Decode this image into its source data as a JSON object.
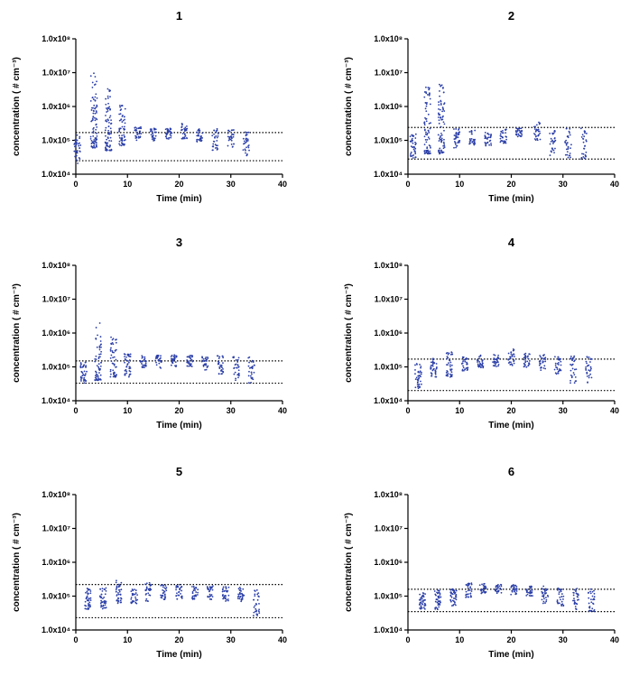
{
  "chart_data": [
    {
      "type": "scatter",
      "title": "1",
      "xlabel": "Time (min)",
      "ylabel": "concentration ( # cm⁻³)",
      "xlim": [
        0,
        40
      ],
      "ylim": [
        10000,
        100000000
      ],
      "yscale": "log",
      "xticks": [
        "0",
        "10",
        "20",
        "30",
        "40"
      ],
      "yticks": [
        "1.0x10⁴",
        "1.0x10⁵",
        "1.0x10⁶",
        "1.0x10⁷",
        "1.0x10⁸"
      ],
      "thresholds": [
        170000,
        25000
      ],
      "series": [
        {
          "color": "#2b3fa8",
          "groups": [
            {
              "x": 0.3,
              "min": 20000,
              "max": 150000,
              "n": 40
            },
            {
              "x": 3.5,
              "min": 60000,
              "max": 10000000,
              "n": 90
            },
            {
              "x": 6.3,
              "min": 50000,
              "max": 3500000,
              "n": 80
            },
            {
              "x": 9.0,
              "min": 70000,
              "max": 1300000,
              "n": 60
            },
            {
              "x": 12.0,
              "min": 100000,
              "max": 250000,
              "n": 30
            },
            {
              "x": 15.0,
              "min": 90000,
              "max": 230000,
              "n": 30
            },
            {
              "x": 18.0,
              "min": 110000,
              "max": 230000,
              "n": 30
            },
            {
              "x": 21.0,
              "min": 110000,
              "max": 350000,
              "n": 30
            },
            {
              "x": 24.0,
              "min": 90000,
              "max": 220000,
              "n": 30
            },
            {
              "x": 27.0,
              "min": 50000,
              "max": 220000,
              "n": 30
            },
            {
              "x": 30.0,
              "min": 60000,
              "max": 210000,
              "n": 30
            },
            {
              "x": 33.0,
              "min": 35000,
              "max": 200000,
              "n": 30
            }
          ]
        }
      ]
    },
    {
      "type": "scatter",
      "title": "2",
      "xlabel": "Time (min)",
      "ylabel": "concentration ( # cm⁻³)",
      "xlim": [
        0,
        40
      ],
      "ylim": [
        10000,
        100000000
      ],
      "yscale": "log",
      "xticks": [
        "0",
        "10",
        "20",
        "30",
        "40"
      ],
      "yticks": [
        "1.0x10⁴",
        "1.0x10⁵",
        "1.0x10⁶",
        "1.0x10⁷",
        "1.0x10⁸"
      ],
      "thresholds": [
        240000,
        28000
      ],
      "series": [
        {
          "color": "#2b3fa8",
          "groups": [
            {
              "x": 1.0,
              "min": 30000,
              "max": 160000,
              "n": 40
            },
            {
              "x": 3.8,
              "min": 40000,
              "max": 5000000,
              "n": 80
            },
            {
              "x": 6.5,
              "min": 40000,
              "max": 4500000,
              "n": 80
            },
            {
              "x": 9.5,
              "min": 60000,
              "max": 220000,
              "n": 40
            },
            {
              "x": 12.5,
              "min": 70000,
              "max": 200000,
              "n": 30
            },
            {
              "x": 15.5,
              "min": 60000,
              "max": 180000,
              "n": 30
            },
            {
              "x": 18.5,
              "min": 80000,
              "max": 220000,
              "n": 30
            },
            {
              "x": 21.5,
              "min": 120000,
              "max": 230000,
              "n": 30
            },
            {
              "x": 25.0,
              "min": 100000,
              "max": 350000,
              "n": 30
            },
            {
              "x": 28.0,
              "min": 35000,
              "max": 220000,
              "n": 30
            },
            {
              "x": 31.0,
              "min": 30000,
              "max": 230000,
              "n": 30
            },
            {
              "x": 34.0,
              "min": 28000,
              "max": 230000,
              "n": 30
            }
          ]
        }
      ]
    },
    {
      "type": "scatter",
      "title": "3",
      "xlabel": "Time (min)",
      "ylabel": "concentration ( # cm⁻³)",
      "xlim": [
        0,
        40
      ],
      "ylim": [
        10000,
        100000000
      ],
      "yscale": "log",
      "xticks": [
        "0",
        "10",
        "20",
        "30",
        "40"
      ],
      "yticks": [
        "1.0x10⁴",
        "1.0x10⁵",
        "1.0x10⁶",
        "1.0x10⁷",
        "1.0x10⁸"
      ],
      "thresholds": [
        150000,
        33000
      ],
      "series": [
        {
          "color": "#2b3fa8",
          "groups": [
            {
              "x": 1.5,
              "min": 33000,
              "max": 140000,
              "n": 40
            },
            {
              "x": 4.3,
              "min": 40000,
              "max": 2200000,
              "n": 60
            },
            {
              "x": 7.3,
              "min": 50000,
              "max": 800000,
              "n": 50
            },
            {
              "x": 10.0,
              "min": 50000,
              "max": 250000,
              "n": 40
            },
            {
              "x": 13.0,
              "min": 90000,
              "max": 230000,
              "n": 30
            },
            {
              "x": 16.0,
              "min": 90000,
              "max": 220000,
              "n": 30
            },
            {
              "x": 19.0,
              "min": 100000,
              "max": 230000,
              "n": 30
            },
            {
              "x": 22.0,
              "min": 100000,
              "max": 220000,
              "n": 30
            },
            {
              "x": 25.0,
              "min": 80000,
              "max": 200000,
              "n": 30
            },
            {
              "x": 28.0,
              "min": 60000,
              "max": 220000,
              "n": 30
            },
            {
              "x": 31.0,
              "min": 40000,
              "max": 200000,
              "n": 30
            },
            {
              "x": 34.0,
              "min": 33000,
              "max": 200000,
              "n": 30
            }
          ]
        }
      ]
    },
    {
      "type": "scatter",
      "title": "4",
      "xlabel": "Time (min)",
      "ylabel": "concentration ( # cm⁻³)",
      "xlim": [
        0,
        40
      ],
      "ylim": [
        10000,
        100000000
      ],
      "yscale": "log",
      "xticks": [
        "0",
        "10",
        "20",
        "30",
        "40"
      ],
      "yticks": [
        "1.0x10⁴",
        "1.0x10⁵",
        "1.0x10⁶",
        "1.0x10⁷",
        "1.0x10⁸"
      ],
      "thresholds": [
        170000,
        20000
      ],
      "series": [
        {
          "color": "#2b3fa8",
          "groups": [
            {
              "x": 2.0,
              "min": 22000,
              "max": 130000,
              "n": 40
            },
            {
              "x": 5.0,
              "min": 40000,
              "max": 180000,
              "n": 40
            },
            {
              "x": 8.0,
              "min": 50000,
              "max": 300000,
              "n": 40
            },
            {
              "x": 11.0,
              "min": 70000,
              "max": 200000,
              "n": 30
            },
            {
              "x": 14.0,
              "min": 90000,
              "max": 230000,
              "n": 30
            },
            {
              "x": 17.0,
              "min": 100000,
              "max": 230000,
              "n": 30
            },
            {
              "x": 20.0,
              "min": 110000,
              "max": 350000,
              "n": 30
            },
            {
              "x": 23.0,
              "min": 90000,
              "max": 260000,
              "n": 30
            },
            {
              "x": 26.0,
              "min": 80000,
              "max": 230000,
              "n": 30
            },
            {
              "x": 29.0,
              "min": 60000,
              "max": 200000,
              "n": 30
            },
            {
              "x": 32.0,
              "min": 30000,
              "max": 220000,
              "n": 30
            },
            {
              "x": 35.0,
              "min": 30000,
              "max": 200000,
              "n": 30
            }
          ]
        }
      ]
    },
    {
      "type": "scatter",
      "title": "5",
      "xlabel": "Time (min)",
      "ylabel": "concentration ( # cm⁻³)",
      "xlim": [
        0,
        40
      ],
      "ylim": [
        10000,
        100000000
      ],
      "yscale": "log",
      "xticks": [
        "0",
        "10",
        "20",
        "30",
        "40"
      ],
      "yticks": [
        "1.0x10⁴",
        "1.0x10⁵",
        "1.0x10⁶",
        "1.0x10⁷",
        "1.0x10⁸"
      ],
      "thresholds": [
        220000,
        23000
      ],
      "series": [
        {
          "color": "#2b3fa8",
          "groups": [
            {
              "x": 2.3,
              "min": 40000,
              "max": 180000,
              "n": 40
            },
            {
              "x": 5.3,
              "min": 40000,
              "max": 180000,
              "n": 40
            },
            {
              "x": 8.3,
              "min": 60000,
              "max": 300000,
              "n": 40
            },
            {
              "x": 11.3,
              "min": 60000,
              "max": 160000,
              "n": 30
            },
            {
              "x": 14.0,
              "min": 70000,
              "max": 250000,
              "n": 30
            },
            {
              "x": 17.0,
              "min": 80000,
              "max": 220000,
              "n": 30
            },
            {
              "x": 20.0,
              "min": 80000,
              "max": 220000,
              "n": 30
            },
            {
              "x": 23.0,
              "min": 80000,
              "max": 200000,
              "n": 30
            },
            {
              "x": 26.0,
              "min": 80000,
              "max": 200000,
              "n": 30
            },
            {
              "x": 29.0,
              "min": 70000,
              "max": 190000,
              "n": 30
            },
            {
              "x": 32.0,
              "min": 70000,
              "max": 190000,
              "n": 30
            },
            {
              "x": 35.0,
              "min": 25000,
              "max": 160000,
              "n": 30
            }
          ]
        }
      ]
    },
    {
      "type": "scatter",
      "title": "6",
      "xlabel": "Time (min)",
      "ylabel": "concentration ( # cm⁻³)",
      "xlim": [
        0,
        40
      ],
      "ylim": [
        10000,
        100000000
      ],
      "yscale": "log",
      "xticks": [
        "0",
        "10",
        "20",
        "30",
        "40"
      ],
      "yticks": [
        "1.0x10⁴",
        "1.0x10⁵",
        "1.0x10⁶",
        "1.0x10⁷",
        "1.0x10⁸"
      ],
      "thresholds": [
        160000,
        35000
      ],
      "series": [
        {
          "color": "#2b3fa8",
          "groups": [
            {
              "x": 2.8,
              "min": 40000,
              "max": 130000,
              "n": 40
            },
            {
              "x": 5.8,
              "min": 40000,
              "max": 150000,
              "n": 40
            },
            {
              "x": 8.8,
              "min": 50000,
              "max": 170000,
              "n": 40
            },
            {
              "x": 11.8,
              "min": 90000,
              "max": 250000,
              "n": 30
            },
            {
              "x": 14.5,
              "min": 120000,
              "max": 250000,
              "n": 30
            },
            {
              "x": 17.5,
              "min": 120000,
              "max": 220000,
              "n": 30
            },
            {
              "x": 20.5,
              "min": 110000,
              "max": 220000,
              "n": 30
            },
            {
              "x": 23.5,
              "min": 100000,
              "max": 200000,
              "n": 30
            },
            {
              "x": 26.5,
              "min": 60000,
              "max": 200000,
              "n": 30
            },
            {
              "x": 29.5,
              "min": 50000,
              "max": 180000,
              "n": 30
            },
            {
              "x": 32.5,
              "min": 40000,
              "max": 170000,
              "n": 30
            },
            {
              "x": 35.5,
              "min": 35000,
              "max": 180000,
              "n": 30
            }
          ]
        }
      ]
    }
  ]
}
